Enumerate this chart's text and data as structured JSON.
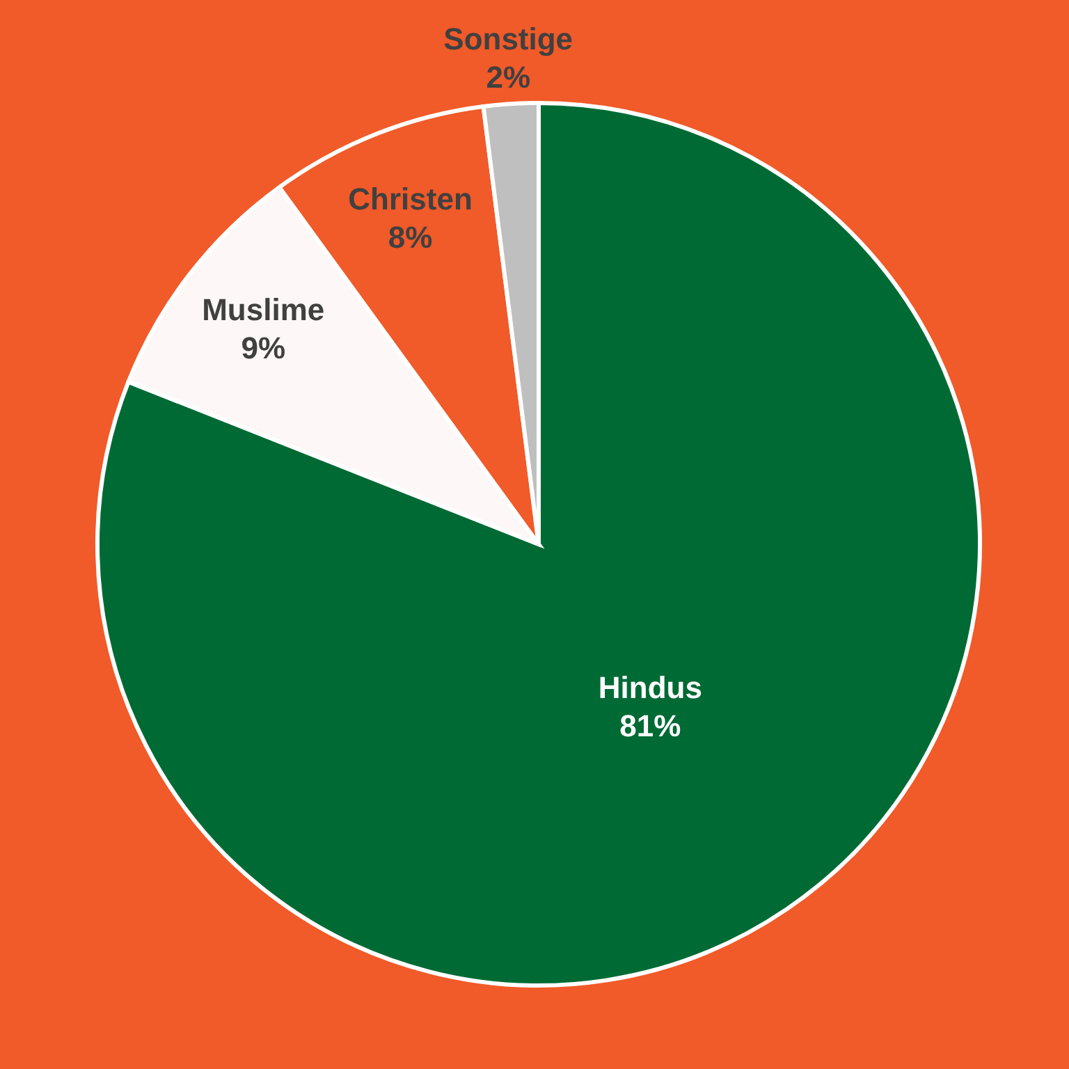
{
  "chart_data": {
    "type": "pie",
    "categories": [
      "Hindus",
      "Muslime",
      "Christen",
      "Sonstige"
    ],
    "values": [
      81,
      9,
      8,
      2
    ],
    "value_labels": [
      "81%",
      "9%",
      "8%",
      "2%"
    ],
    "colors": [
      "#006a35",
      "#fdf7f7",
      "#f15a29",
      "#bfbfbf"
    ],
    "legend": false
  }
}
